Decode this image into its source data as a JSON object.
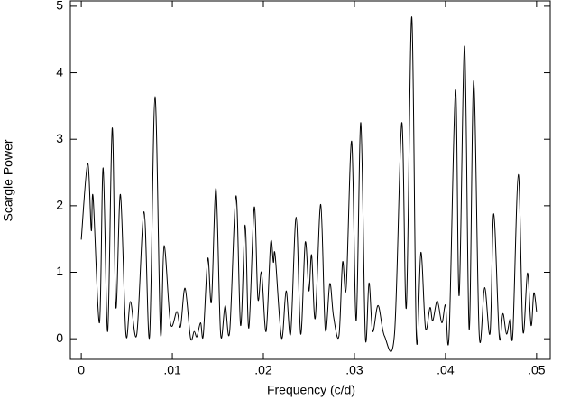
{
  "chart_data": {
    "type": "line",
    "xlabel": "Frequency (c/d)",
    "ylabel": "Scargle Power",
    "color": "#000000",
    "xlim": [
      -0.0012,
      0.0515
    ],
    "ylim": [
      -0.31,
      5.08
    ],
    "xticks": [
      0,
      {
        "value": 0.01,
        "label": ".01"
      },
      {
        "value": 0.02,
        "label": ".02"
      },
      {
        "value": 0.03,
        "label": ".03"
      },
      {
        "value": 0.04,
        "label": ".04"
      },
      {
        "value": 0.05,
        "label": ".05"
      }
    ],
    "yticks": [
      0,
      1,
      2,
      3,
      4,
      5
    ],
    "x": [
      0,
      0.0007,
      0.0011,
      0.0013,
      0.002,
      0.0024,
      0.0029,
      0.0034,
      0.0038,
      0.0043,
      0.0049,
      0.0054,
      0.0061,
      0.0069,
      0.0075,
      0.0081,
      0.0087,
      0.0091,
      0.0098,
      0.0105,
      0.0109,
      0.0114,
      0.012,
      0.0124,
      0.0127,
      0.0131,
      0.0134,
      0.0139,
      0.0143,
      0.0148,
      0.0153,
      0.0158,
      0.0163,
      0.017,
      0.0175,
      0.018,
      0.0184,
      0.019,
      0.0194,
      0.0198,
      0.0203,
      0.0208,
      0.0211,
      0.0213,
      0.022,
      0.0225,
      0.023,
      0.0236,
      0.0241,
      0.0246,
      0.025,
      0.0253,
      0.0257,
      0.0263,
      0.0268,
      0.0273,
      0.0277,
      0.0283,
      0.0287,
      0.0291,
      0.0297,
      0.0302,
      0.0307,
      0.0312,
      0.0316,
      0.032,
      0.0326,
      0.0333,
      0.0344,
      0.0352,
      0.0357,
      0.0363,
      0.0368,
      0.0373,
      0.0378,
      0.0383,
      0.0386,
      0.0391,
      0.0396,
      0.04,
      0.0404,
      0.0411,
      0.0415,
      0.0421,
      0.0426,
      0.0431,
      0.0437,
      0.0443,
      0.0449,
      0.0453,
      0.0459,
      0.0463,
      0.0467,
      0.0471,
      0.0474,
      0.048,
      0.0485,
      0.049,
      0.0494,
      0.0497,
      0.05
    ],
    "values": [
      1.49,
      2.64,
      1.63,
      2.13,
      0.24,
      2.57,
      0.11,
      3.17,
      0.47,
      2.17,
      0.07,
      0.56,
      0.07,
      1.91,
      0.03,
      3.64,
      0.09,
      1.4,
      0.23,
      0.41,
      0.18,
      0.76,
      0.01,
      0.11,
      0.03,
      0.24,
      0.05,
      1.21,
      0.56,
      2.26,
      0.08,
      0.5,
      0.11,
      2.15,
      0.2,
      1.71,
      0.16,
      1.98,
      0.6,
      1.0,
      0.11,
      1.44,
      1.15,
      1.25,
      0.01,
      0.72,
      0.08,
      1.83,
      0.07,
      1.45,
      0.72,
      1.26,
      0.31,
      2.02,
      0.14,
      0.83,
      0.34,
      0.04,
      1.15,
      0.77,
      2.97,
      0.27,
      3.25,
      0.03,
      0.84,
      0.11,
      0.5,
      0.04,
      0.07,
      3.25,
      0.47,
      4.84,
      0.03,
      1.3,
      0.16,
      0.47,
      0.27,
      0.57,
      0.24,
      0.51,
      0.07,
      3.74,
      0.65,
      4.4,
      0.14,
      3.88,
      0.07,
      0.77,
      0.09,
      1.88,
      0.04,
      0.38,
      0.07,
      0.3,
      0.09,
      2.47,
      0.12,
      0.99,
      0.2,
      0.69,
      0.41
    ]
  }
}
